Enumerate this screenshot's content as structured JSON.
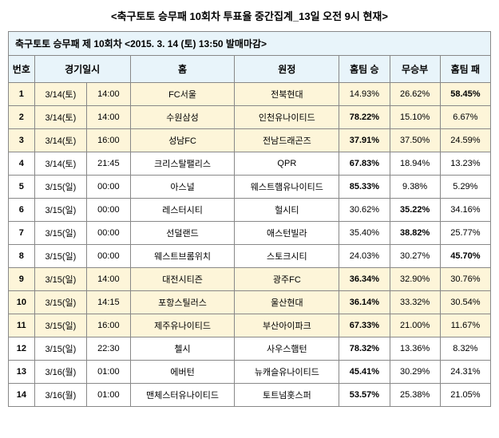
{
  "title": "<축구토토 승무패 10회차 투표율 중간집계_13일 오전 9시 현재>",
  "subtitle": "축구토토 승무패 제 10회차 <2015. 3. 14 (토) 13:50 발매마감>",
  "headers": {
    "num": "번호",
    "datetime": "경기일시",
    "home": "홈",
    "away": "원정",
    "win": "홈팀 승",
    "draw": "무승부",
    "lose": "홈팀 패"
  },
  "rows": [
    {
      "n": "1",
      "date": "3/14(토)",
      "time": "14:00",
      "home": "FC서울",
      "away": "전북현대",
      "w": "14.93%",
      "d": "26.62%",
      "l": "58.45%",
      "bold": "l",
      "hl": true
    },
    {
      "n": "2",
      "date": "3/14(토)",
      "time": "14:00",
      "home": "수원삼성",
      "away": "인천유나이티드",
      "w": "78.22%",
      "d": "15.10%",
      "l": "6.67%",
      "bold": "w",
      "hl": true
    },
    {
      "n": "3",
      "date": "3/14(토)",
      "time": "16:00",
      "home": "성남FC",
      "away": "전남드래곤즈",
      "w": "37.91%",
      "d": "37.50%",
      "l": "24.59%",
      "bold": "w",
      "hl": true
    },
    {
      "n": "4",
      "date": "3/14(토)",
      "time": "21:45",
      "home": "크리스탈팰리스",
      "away": "QPR",
      "w": "67.83%",
      "d": "18.94%",
      "l": "13.23%",
      "bold": "w",
      "hl": false
    },
    {
      "n": "5",
      "date": "3/15(일)",
      "time": "00:00",
      "home": "아스널",
      "away": "웨스트햄유나이티드",
      "w": "85.33%",
      "d": "9.38%",
      "l": "5.29%",
      "bold": "w",
      "hl": false
    },
    {
      "n": "6",
      "date": "3/15(일)",
      "time": "00:00",
      "home": "레스터시티",
      "away": "헐시티",
      "w": "30.62%",
      "d": "35.22%",
      "l": "34.16%",
      "bold": "d",
      "hl": false
    },
    {
      "n": "7",
      "date": "3/15(일)",
      "time": "00:00",
      "home": "선덜랜드",
      "away": "애스턴빌라",
      "w": "35.40%",
      "d": "38.82%",
      "l": "25.77%",
      "bold": "d",
      "hl": false
    },
    {
      "n": "8",
      "date": "3/15(일)",
      "time": "00:00",
      "home": "웨스트브롬위치",
      "away": "스토크시티",
      "w": "24.03%",
      "d": "30.27%",
      "l": "45.70%",
      "bold": "l",
      "hl": false
    },
    {
      "n": "9",
      "date": "3/15(일)",
      "time": "14:00",
      "home": "대전시티즌",
      "away": "광주FC",
      "w": "36.34%",
      "d": "32.90%",
      "l": "30.76%",
      "bold": "w",
      "hl": true
    },
    {
      "n": "10",
      "date": "3/15(일)",
      "time": "14:15",
      "home": "포항스틸러스",
      "away": "울산현대",
      "w": "36.14%",
      "d": "33.32%",
      "l": "30.54%",
      "bold": "w",
      "hl": true
    },
    {
      "n": "11",
      "date": "3/15(일)",
      "time": "16:00",
      "home": "제주유나이티드",
      "away": "부산아이파크",
      "w": "67.33%",
      "d": "21.00%",
      "l": "11.67%",
      "bold": "w",
      "hl": true
    },
    {
      "n": "12",
      "date": "3/15(일)",
      "time": "22:30",
      "home": "첼시",
      "away": "사우스햄턴",
      "w": "78.32%",
      "d": "13.36%",
      "l": "8.32%",
      "bold": "w",
      "hl": false
    },
    {
      "n": "13",
      "date": "3/16(월)",
      "time": "01:00",
      "home": "에버턴",
      "away": "뉴캐슬유나이티드",
      "w": "45.41%",
      "d": "30.29%",
      "l": "24.31%",
      "bold": "w",
      "hl": false
    },
    {
      "n": "14",
      "date": "3/16(월)",
      "time": "01:00",
      "home": "맨체스터유나이티드",
      "away": "토트넘홋스퍼",
      "w": "53.57%",
      "d": "25.38%",
      "l": "21.05%",
      "bold": "w",
      "hl": false
    }
  ]
}
